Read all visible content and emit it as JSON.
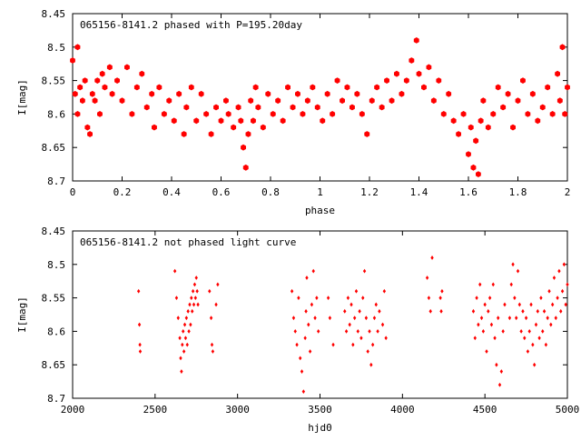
{
  "chart_data": [
    {
      "type": "scatter",
      "title": "065156-8141.2 phased with P=195.20day",
      "xlabel": "phase",
      "ylabel": "I[mag]",
      "xlim": [
        0,
        2
      ],
      "ylim": [
        8.45,
        8.7
      ],
      "y_inverted": true,
      "xticks": [
        "0",
        "0.2",
        "0.4",
        "0.6",
        "0.8",
        "1",
        "1.2",
        "1.4",
        "1.6",
        "1.8",
        "2"
      ],
      "yticks": [
        "8.45",
        "8.5",
        "8.55",
        "8.6",
        "8.65",
        "8.7"
      ],
      "marker": "filled-hexagon",
      "color": "#ff0000",
      "points": [
        [
          0.0,
          8.52
        ],
        [
          0.01,
          8.57
        ],
        [
          0.02,
          8.6
        ],
        [
          0.02,
          8.5
        ],
        [
          0.03,
          8.56
        ],
        [
          0.04,
          8.58
        ],
        [
          0.05,
          8.55
        ],
        [
          0.06,
          8.62
        ],
        [
          0.07,
          8.63
        ],
        [
          0.08,
          8.57
        ],
        [
          0.09,
          8.58
        ],
        [
          0.1,
          8.55
        ],
        [
          0.11,
          8.6
        ],
        [
          0.12,
          8.54
        ],
        [
          0.13,
          8.56
        ],
        [
          0.15,
          8.53
        ],
        [
          0.16,
          8.57
        ],
        [
          0.18,
          8.55
        ],
        [
          0.2,
          8.58
        ],
        [
          0.22,
          8.53
        ],
        [
          0.24,
          8.6
        ],
        [
          0.26,
          8.56
        ],
        [
          0.28,
          8.54
        ],
        [
          0.3,
          8.59
        ],
        [
          0.32,
          8.57
        ],
        [
          0.33,
          8.62
        ],
        [
          0.35,
          8.56
        ],
        [
          0.37,
          8.6
        ],
        [
          0.39,
          8.58
        ],
        [
          0.41,
          8.61
        ],
        [
          0.43,
          8.57
        ],
        [
          0.45,
          8.63
        ],
        [
          0.46,
          8.59
        ],
        [
          0.48,
          8.56
        ],
        [
          0.5,
          8.61
        ],
        [
          0.52,
          8.57
        ],
        [
          0.54,
          8.6
        ],
        [
          0.56,
          8.63
        ],
        [
          0.58,
          8.59
        ],
        [
          0.6,
          8.61
        ],
        [
          0.62,
          8.58
        ],
        [
          0.63,
          8.6
        ],
        [
          0.65,
          8.62
        ],
        [
          0.67,
          8.59
        ],
        [
          0.68,
          8.61
        ],
        [
          0.69,
          8.65
        ],
        [
          0.7,
          8.68
        ],
        [
          0.71,
          8.63
        ],
        [
          0.72,
          8.58
        ],
        [
          0.73,
          8.61
        ],
        [
          0.74,
          8.56
        ],
        [
          0.75,
          8.59
        ],
        [
          0.77,
          8.62
        ],
        [
          0.79,
          8.57
        ],
        [
          0.81,
          8.6
        ],
        [
          0.83,
          8.58
        ],
        [
          0.85,
          8.61
        ],
        [
          0.87,
          8.56
        ],
        [
          0.89,
          8.59
        ],
        [
          0.91,
          8.57
        ],
        [
          0.93,
          8.6
        ],
        [
          0.95,
          8.58
        ],
        [
          0.97,
          8.56
        ],
        [
          0.99,
          8.59
        ],
        [
          1.01,
          8.61
        ],
        [
          1.03,
          8.57
        ],
        [
          1.05,
          8.6
        ],
        [
          1.07,
          8.55
        ],
        [
          1.09,
          8.58
        ],
        [
          1.11,
          8.56
        ],
        [
          1.13,
          8.59
        ],
        [
          1.15,
          8.57
        ],
        [
          1.17,
          8.6
        ],
        [
          1.19,
          8.63
        ],
        [
          1.21,
          8.58
        ],
        [
          1.23,
          8.56
        ],
        [
          1.25,
          8.59
        ],
        [
          1.27,
          8.55
        ],
        [
          1.29,
          8.58
        ],
        [
          1.31,
          8.54
        ],
        [
          1.33,
          8.57
        ],
        [
          1.35,
          8.55
        ],
        [
          1.37,
          8.52
        ],
        [
          1.39,
          8.49
        ],
        [
          1.4,
          8.54
        ],
        [
          1.42,
          8.56
        ],
        [
          1.44,
          8.53
        ],
        [
          1.46,
          8.58
        ],
        [
          1.48,
          8.55
        ],
        [
          1.5,
          8.6
        ],
        [
          1.52,
          8.57
        ],
        [
          1.54,
          8.61
        ],
        [
          1.56,
          8.63
        ],
        [
          1.58,
          8.6
        ],
        [
          1.6,
          8.66
        ],
        [
          1.61,
          8.62
        ],
        [
          1.62,
          8.68
        ],
        [
          1.63,
          8.64
        ],
        [
          1.64,
          8.69
        ],
        [
          1.65,
          8.61
        ],
        [
          1.66,
          8.58
        ],
        [
          1.68,
          8.62
        ],
        [
          1.7,
          8.6
        ],
        [
          1.72,
          8.56
        ],
        [
          1.74,
          8.59
        ],
        [
          1.76,
          8.57
        ],
        [
          1.78,
          8.62
        ],
        [
          1.8,
          8.58
        ],
        [
          1.82,
          8.55
        ],
        [
          1.84,
          8.6
        ],
        [
          1.86,
          8.57
        ],
        [
          1.88,
          8.61
        ],
        [
          1.9,
          8.59
        ],
        [
          1.92,
          8.56
        ],
        [
          1.94,
          8.6
        ],
        [
          1.96,
          8.54
        ],
        [
          1.97,
          8.58
        ],
        [
          1.98,
          8.5
        ],
        [
          1.99,
          8.6
        ],
        [
          2.0,
          8.56
        ]
      ]
    },
    {
      "type": "scatter",
      "title": "065156-8141.2 not phased light curve",
      "xlabel": "hjd0",
      "ylabel": "I[mag]",
      "xlim": [
        2000,
        5000
      ],
      "ylim": [
        8.45,
        8.7
      ],
      "y_inverted": true,
      "xticks": [
        "2000",
        "2500",
        "3000",
        "3500",
        "4000",
        "4500",
        "5000"
      ],
      "yticks": [
        "8.45",
        "8.5",
        "8.55",
        "8.6",
        "8.65",
        "8.7"
      ],
      "marker": "small-diamond",
      "color": "#ff0000",
      "points": [
        [
          2400,
          8.54
        ],
        [
          2405,
          8.59
        ],
        [
          2408,
          8.62
        ],
        [
          2410,
          8.63
        ],
        [
          2620,
          8.51
        ],
        [
          2630,
          8.55
        ],
        [
          2640,
          8.58
        ],
        [
          2650,
          8.61
        ],
        [
          2655,
          8.64
        ],
        [
          2660,
          8.66
        ],
        [
          2665,
          8.62
        ],
        [
          2670,
          8.6
        ],
        [
          2675,
          8.63
        ],
        [
          2680,
          8.59
        ],
        [
          2685,
          8.61
        ],
        [
          2690,
          8.58
        ],
        [
          2695,
          8.62
        ],
        [
          2700,
          8.57
        ],
        [
          2705,
          8.6
        ],
        [
          2710,
          8.56
        ],
        [
          2715,
          8.59
        ],
        [
          2720,
          8.55
        ],
        [
          2725,
          8.57
        ],
        [
          2730,
          8.54
        ],
        [
          2735,
          8.56
        ],
        [
          2740,
          8.53
        ],
        [
          2745,
          8.55
        ],
        [
          2750,
          8.52
        ],
        [
          2755,
          8.54
        ],
        [
          2760,
          8.56
        ],
        [
          2830,
          8.54
        ],
        [
          2840,
          8.58
        ],
        [
          2845,
          8.62
        ],
        [
          2850,
          8.63
        ],
        [
          2870,
          8.56
        ],
        [
          2880,
          8.53
        ],
        [
          3330,
          8.54
        ],
        [
          3340,
          8.58
        ],
        [
          3350,
          8.6
        ],
        [
          3360,
          8.62
        ],
        [
          3370,
          8.55
        ],
        [
          3380,
          8.64
        ],
        [
          3390,
          8.66
        ],
        [
          3400,
          8.69
        ],
        [
          3410,
          8.61
        ],
        [
          3415,
          8.57
        ],
        [
          3420,
          8.52
        ],
        [
          3430,
          8.59
        ],
        [
          3440,
          8.63
        ],
        [
          3450,
          8.56
        ],
        [
          3460,
          8.51
        ],
        [
          3470,
          8.58
        ],
        [
          3480,
          8.55
        ],
        [
          3490,
          8.6
        ],
        [
          3550,
          8.55
        ],
        [
          3560,
          8.58
        ],
        [
          3580,
          8.62
        ],
        [
          3650,
          8.57
        ],
        [
          3660,
          8.6
        ],
        [
          3670,
          8.55
        ],
        [
          3680,
          8.59
        ],
        [
          3690,
          8.56
        ],
        [
          3700,
          8.62
        ],
        [
          3710,
          8.58
        ],
        [
          3720,
          8.54
        ],
        [
          3730,
          8.6
        ],
        [
          3740,
          8.57
        ],
        [
          3750,
          8.61
        ],
        [
          3760,
          8.55
        ],
        [
          3770,
          8.51
        ],
        [
          3780,
          8.58
        ],
        [
          3790,
          8.63
        ],
        [
          3800,
          8.6
        ],
        [
          3810,
          8.65
        ],
        [
          3820,
          8.62
        ],
        [
          3830,
          8.58
        ],
        [
          3840,
          8.56
        ],
        [
          3850,
          8.6
        ],
        [
          3860,
          8.57
        ],
        [
          3880,
          8.59
        ],
        [
          3890,
          8.54
        ],
        [
          3900,
          8.61
        ],
        [
          4150,
          8.52
        ],
        [
          4160,
          8.55
        ],
        [
          4170,
          8.57
        ],
        [
          4180,
          8.49
        ],
        [
          4230,
          8.55
        ],
        [
          4235,
          8.57
        ],
        [
          4240,
          8.54
        ],
        [
          4430,
          8.57
        ],
        [
          4440,
          8.61
        ],
        [
          4450,
          8.55
        ],
        [
          4460,
          8.59
        ],
        [
          4470,
          8.53
        ],
        [
          4480,
          8.58
        ],
        [
          4490,
          8.6
        ],
        [
          4500,
          8.56
        ],
        [
          4510,
          8.63
        ],
        [
          4520,
          8.57
        ],
        [
          4530,
          8.55
        ],
        [
          4540,
          8.59
        ],
        [
          4550,
          8.53
        ],
        [
          4560,
          8.61
        ],
        [
          4570,
          8.65
        ],
        [
          4580,
          8.58
        ],
        [
          4590,
          8.68
        ],
        [
          4600,
          8.66
        ],
        [
          4610,
          8.6
        ],
        [
          4620,
          8.56
        ],
        [
          4650,
          8.58
        ],
        [
          4660,
          8.53
        ],
        [
          4670,
          8.5
        ],
        [
          4680,
          8.55
        ],
        [
          4690,
          8.58
        ],
        [
          4700,
          8.51
        ],
        [
          4710,
          8.56
        ],
        [
          4720,
          8.6
        ],
        [
          4730,
          8.57
        ],
        [
          4740,
          8.61
        ],
        [
          4750,
          8.58
        ],
        [
          4760,
          8.63
        ],
        [
          4770,
          8.6
        ],
        [
          4780,
          8.56
        ],
        [
          4790,
          8.62
        ],
        [
          4800,
          8.65
        ],
        [
          4810,
          8.59
        ],
        [
          4820,
          8.57
        ],
        [
          4830,
          8.61
        ],
        [
          4840,
          8.55
        ],
        [
          4850,
          8.6
        ],
        [
          4860,
          8.57
        ],
        [
          4870,
          8.62
        ],
        [
          4880,
          8.58
        ],
        [
          4890,
          8.54
        ],
        [
          4900,
          8.59
        ],
        [
          4910,
          8.56
        ],
        [
          4920,
          8.52
        ],
        [
          4930,
          8.58
        ],
        [
          4940,
          8.55
        ],
        [
          4950,
          8.51
        ],
        [
          4960,
          8.57
        ],
        [
          4970,
          8.54
        ],
        [
          4980,
          8.5
        ],
        [
          4990,
          8.56
        ],
        [
          5000,
          8.53
        ]
      ]
    }
  ]
}
